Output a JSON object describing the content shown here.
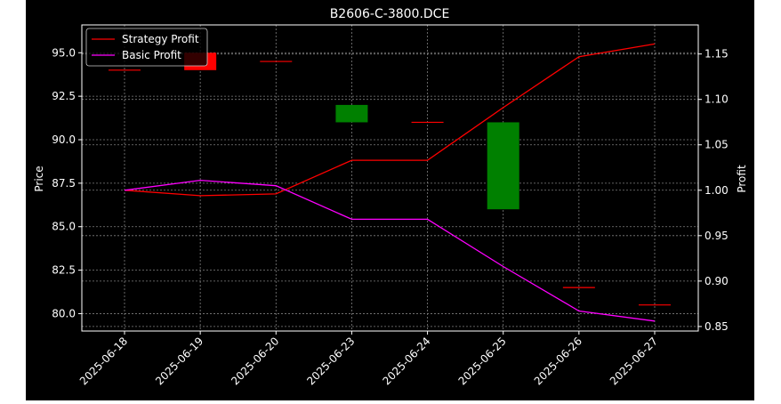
{
  "chart_data": {
    "type": "candlestick+line",
    "title": "B2606-C-3800.DCE",
    "ylabel_left": "Price",
    "ylabel_right": "Profit",
    "categories": [
      "2025-06-18",
      "2025-06-19",
      "2025-06-20",
      "2025-06-23",
      "2025-06-24",
      "2025-06-25",
      "2025-06-26",
      "2025-06-27"
    ],
    "left_axis": {
      "ylim": [
        79.0,
        96.6
      ],
      "ticks": [
        80.0,
        82.5,
        85.0,
        87.5,
        90.0,
        92.5,
        95.0
      ]
    },
    "right_axis": {
      "ylim": [
        0.845,
        1.182
      ],
      "ticks": [
        0.85,
        0.9,
        0.95,
        1.0,
        1.05,
        1.1,
        1.15
      ]
    },
    "grid": true,
    "legend": {
      "position": "top-left"
    },
    "candles": [
      {
        "date": "2025-06-18",
        "open": 94.0,
        "close": 94.0
      },
      {
        "date": "2025-06-19",
        "open": 95.0,
        "close": 94.0
      },
      {
        "date": "2025-06-20",
        "open": 94.5,
        "close": 94.5
      },
      {
        "date": "2025-06-23",
        "open": 91.0,
        "close": 92.0
      },
      {
        "date": "2025-06-24",
        "open": 91.0,
        "close": 91.0
      },
      {
        "date": "2025-06-25",
        "open": 86.0,
        "close": 91.0
      },
      {
        "date": "2025-06-26",
        "open": 81.5,
        "close": 81.5
      },
      {
        "date": "2025-06-27",
        "open": 80.5,
        "close": 80.5
      }
    ],
    "series": [
      {
        "name": "Strategy Profit",
        "color": "#ff0000",
        "axis": "right",
        "values": [
          1.0,
          0.994,
          0.996,
          1.033,
          1.033,
          1.091,
          1.147,
          1.161
        ]
      },
      {
        "name": "Basic Profit",
        "color": "#ff00ff",
        "axis": "right",
        "values": [
          1.0,
          1.011,
          1.005,
          0.968,
          0.968,
          0.916,
          0.867,
          0.856
        ]
      }
    ],
    "colors": {
      "background": "#000000",
      "up": "#008000",
      "down": "#ff0000",
      "flat": "#ff0000",
      "text": "#ffffff",
      "grid": "#808080"
    }
  }
}
